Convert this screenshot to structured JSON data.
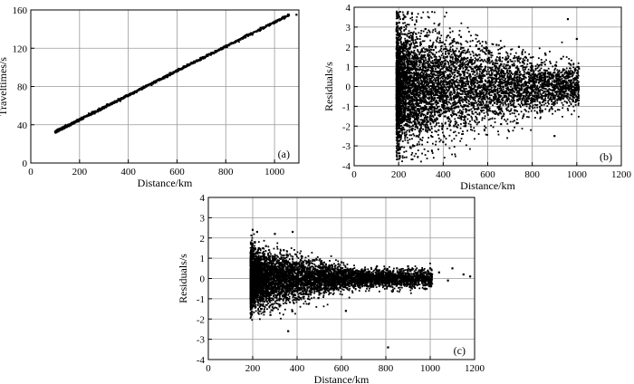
{
  "chart_data": [
    {
      "id": "a",
      "type": "scatter",
      "panel_label": "(a)",
      "xlabel": "Distance/km",
      "ylabel": "Traveltimes/s",
      "xlim": [
        0,
        1100
      ],
      "ylim": [
        0,
        160
      ],
      "xticks": [
        0,
        200,
        400,
        600,
        800,
        1000
      ],
      "yticks": [
        0,
        40,
        80,
        120,
        160
      ],
      "grid": true,
      "points": [
        [
          100,
          32.5
        ],
        [
          120,
          35
        ],
        [
          150,
          39
        ],
        [
          180,
          43
        ],
        [
          200,
          45.5
        ],
        [
          230,
          49
        ],
        [
          260,
          53
        ],
        [
          300,
          58
        ],
        [
          330,
          62
        ],
        [
          360,
          66
        ],
        [
          400,
          71
        ],
        [
          430,
          75
        ],
        [
          460,
          79
        ],
        [
          500,
          84
        ],
        [
          530,
          88
        ],
        [
          560,
          92
        ],
        [
          600,
          97
        ],
        [
          630,
          101
        ],
        [
          660,
          105
        ],
        [
          700,
          110
        ],
        [
          740,
          115
        ],
        [
          780,
          120
        ],
        [
          820,
          125
        ],
        [
          860,
          129
        ],
        [
          900,
          134
        ],
        [
          940,
          139
        ],
        [
          980,
          144
        ],
        [
          1000,
          146.5
        ],
        [
          1020,
          149
        ],
        [
          1040,
          151
        ],
        [
          1090,
          155
        ]
      ]
    },
    {
      "id": "b",
      "type": "scatter",
      "panel_label": "(b)",
      "xlabel": "Distance/km",
      "ylabel": "Residuals/s",
      "xlim": [
        0,
        1200
      ],
      "ylim": [
        -4,
        4
      ],
      "xticks": [
        0,
        200,
        400,
        600,
        800,
        1000,
        1200
      ],
      "yticks": [
        -4,
        -3,
        -2,
        -1,
        0,
        1,
        2,
        3,
        4
      ],
      "grid": true,
      "points": [
        [
          190,
          2.8
        ],
        [
          195,
          -3.2
        ],
        [
          200,
          3.6
        ],
        [
          205,
          -3.5
        ],
        [
          210,
          1.5
        ],
        [
          215,
          -1.8
        ],
        [
          220,
          3.4
        ],
        [
          225,
          0.4
        ],
        [
          230,
          -2.5
        ],
        [
          240,
          2.2
        ],
        [
          250,
          -0.8
        ],
        [
          260,
          3.7
        ],
        [
          270,
          -3.0
        ],
        [
          280,
          1.1
        ],
        [
          300,
          -1.5
        ],
        [
          320,
          2.9
        ],
        [
          340,
          -2.2
        ],
        [
          360,
          0.6
        ],
        [
          380,
          3.1
        ],
        [
          400,
          -2.8
        ],
        [
          420,
          1.8
        ],
        [
          450,
          -1.1
        ],
        [
          480,
          2.5
        ],
        [
          500,
          -2.0
        ],
        [
          530,
          0.9
        ],
        [
          560,
          1.9
        ],
        [
          580,
          -0.6
        ],
        [
          600,
          1.2
        ],
        [
          640,
          2.1
        ],
        [
          660,
          -1.9
        ],
        [
          700,
          0.5
        ],
        [
          740,
          2.0
        ],
        [
          760,
          -1.5
        ],
        [
          800,
          1.0
        ],
        [
          830,
          -0.2
        ],
        [
          860,
          1.6
        ],
        [
          900,
          -2.5
        ],
        [
          930,
          1.4
        ],
        [
          950,
          0.7
        ],
        [
          960,
          3.4
        ],
        [
          1000,
          2.4
        ],
        [
          1010,
          0.9
        ]
      ]
    },
    {
      "id": "c",
      "type": "scatter",
      "panel_label": "(c)",
      "xlabel": "Distance/km",
      "ylabel": "Residuals/s",
      "xlim": [
        0,
        1200
      ],
      "ylim": [
        -4,
        4
      ],
      "xticks": [
        0,
        200,
        400,
        600,
        800,
        1000,
        1200
      ],
      "yticks": [
        -4,
        -3,
        -2,
        -1,
        0,
        1,
        2,
        3,
        4
      ],
      "grid": true,
      "points": [
        [
          200,
          2.4
        ],
        [
          205,
          -1.2
        ],
        [
          210,
          1.8
        ],
        [
          215,
          -0.9
        ],
        [
          220,
          2.3
        ],
        [
          230,
          0.5
        ],
        [
          240,
          -1.5
        ],
        [
          260,
          1.6
        ],
        [
          280,
          -1.8
        ],
        [
          300,
          2.2
        ],
        [
          320,
          -1.3
        ],
        [
          340,
          1.4
        ],
        [
          360,
          -2.6
        ],
        [
          380,
          2.3
        ],
        [
          400,
          -0.6
        ],
        [
          420,
          1.1
        ],
        [
          450,
          -1.0
        ],
        [
          480,
          0.9
        ],
        [
          500,
          -0.8
        ],
        [
          530,
          0.7
        ],
        [
          560,
          -0.5
        ],
        [
          600,
          0.8
        ],
        [
          620,
          -1.6
        ],
        [
          650,
          0.4
        ],
        [
          700,
          0.3
        ],
        [
          720,
          -0.4
        ],
        [
          760,
          0.6
        ],
        [
          800,
          0.2
        ],
        [
          810,
          -3.4
        ],
        [
          850,
          0.5
        ],
        [
          880,
          -0.3
        ],
        [
          900,
          0.6
        ],
        [
          950,
          0.4
        ],
        [
          1000,
          0.5
        ],
        [
          1040,
          0.3
        ],
        [
          1080,
          -0.1
        ],
        [
          1100,
          0.5
        ],
        [
          1150,
          0.2
        ],
        [
          1180,
          0.1
        ]
      ]
    }
  ]
}
